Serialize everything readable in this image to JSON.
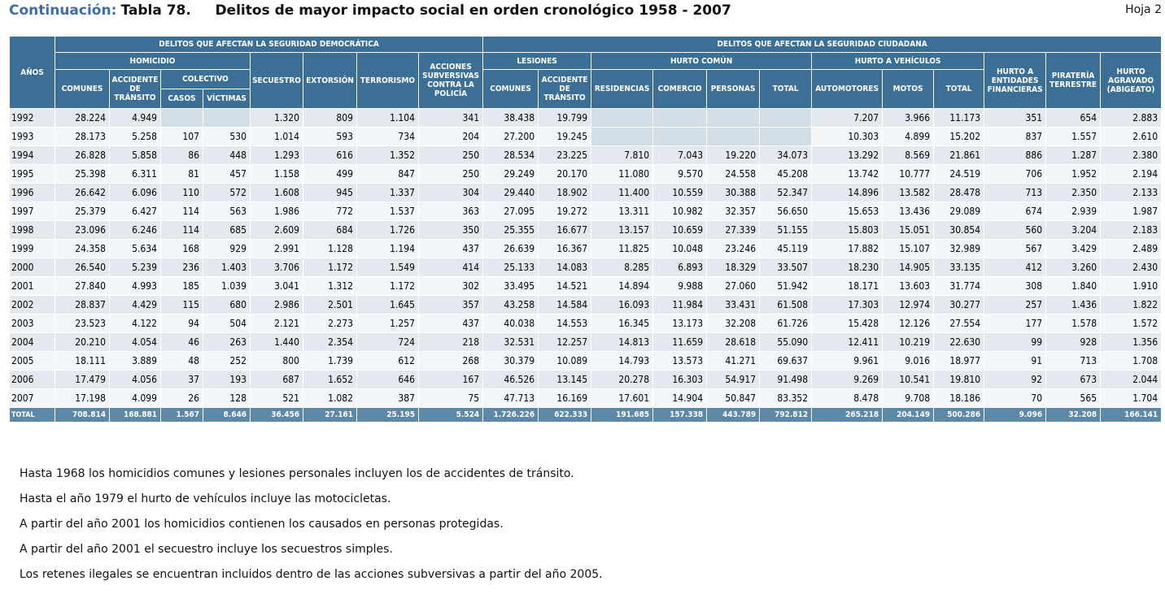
{
  "header": {
    "continuation": "Continuación:",
    "title": "Tabla 78.     Delitos de mayor impacto social en orden cronológico 1958 - 2007",
    "sheet": "Hoja 2"
  },
  "table": {
    "group_headers": {
      "democratica": "DELITOS QUE AFECTAN LA SEGURIDAD DEMOCRÁTICA",
      "ciudadana": "DELITOS QUE AFECTAN LA SEGURIDAD CIUDADANA"
    },
    "sub_headers": {
      "anos": "AÑOS",
      "homicidio": "HOMICIDIO",
      "comunes": "COMUNES",
      "accidente_transito": "ACCIDENTE DE TRÁNSITO",
      "colectivo": "COLECTIVO",
      "casos": "CASOS",
      "victimas": "VÍCTIMAS",
      "secuestro": "SECUESTRO",
      "extorsion": "EXTORSIÓN",
      "terrorismo": "TERRORISMO",
      "acciones": "ACCIONES SUBVERSIVAS CONTRA LA POLICÍA",
      "lesiones": "LESIONES",
      "les_comunes": "COMUNES",
      "les_accidente": "ACCIDENTE DE TRÁNSITO",
      "hurto_comun": "HURTO COMÚN",
      "residencias": "RESIDENCIAS",
      "comercio": "COMERCIO",
      "personas": "PERSONAS",
      "hc_total": "TOTAL",
      "hurto_vehiculos": "HURTO A VEHÍCULOS",
      "automotores": "AUTOMOTORES",
      "motos": "MOTOS",
      "hv_total": "TOTAL",
      "hurto_entidades": "HURTO A ENTIDADES FINANCIERAS",
      "pirateria": "PIRATERÍA TERRESTRE",
      "hurto_agravado": "HURTO AGRAVADO (ABIGEATO)"
    },
    "rows": [
      [
        "1992",
        "28.224",
        "4.949",
        "",
        "",
        "1.320",
        "809",
        "1.104",
        "341",
        "38.438",
        "19.799",
        "",
        "",
        "",
        "",
        "7.207",
        "3.966",
        "11.173",
        "351",
        "654",
        "2.883"
      ],
      [
        "1993",
        "28.173",
        "5.258",
        "107",
        "530",
        "1.014",
        "593",
        "734",
        "204",
        "27.200",
        "19.245",
        "",
        "",
        "",
        "",
        "10.303",
        "4.899",
        "15.202",
        "837",
        "1.557",
        "2.610"
      ],
      [
        "1994",
        "26.828",
        "5.858",
        "86",
        "448",
        "1.293",
        "616",
        "1.352",
        "250",
        "28.534",
        "23.225",
        "7.810",
        "7.043",
        "19.220",
        "34.073",
        "13.292",
        "8.569",
        "21.861",
        "886",
        "1.287",
        "2.380"
      ],
      [
        "1995",
        "25.398",
        "6.311",
        "81",
        "457",
        "1.158",
        "499",
        "847",
        "250",
        "29.249",
        "20.170",
        "11.080",
        "9.570",
        "24.558",
        "45.208",
        "13.742",
        "10.777",
        "24.519",
        "706",
        "1.952",
        "2.194"
      ],
      [
        "1996",
        "26.642",
        "6.096",
        "110",
        "572",
        "1.608",
        "945",
        "1.337",
        "304",
        "29.440",
        "18.902",
        "11.400",
        "10.559",
        "30.388",
        "52.347",
        "14.896",
        "13.582",
        "28.478",
        "713",
        "2.350",
        "2.133"
      ],
      [
        "1997",
        "25.379",
        "6.427",
        "114",
        "563",
        "1.986",
        "772",
        "1.537",
        "363",
        "27.095",
        "19.272",
        "13.311",
        "10.982",
        "32.357",
        "56.650",
        "15.653",
        "13.436",
        "29.089",
        "674",
        "2.939",
        "1.987"
      ],
      [
        "1998",
        "23.096",
        "6.246",
        "114",
        "685",
        "2.609",
        "684",
        "1.726",
        "350",
        "25.355",
        "16.677",
        "13.157",
        "10.659",
        "27.339",
        "51.155",
        "15.803",
        "15.051",
        "30.854",
        "560",
        "3.204",
        "2.183"
      ],
      [
        "1999",
        "24.358",
        "5.634",
        "168",
        "929",
        "2.991",
        "1.128",
        "1.194",
        "437",
        "26.639",
        "16.367",
        "11.825",
        "10.048",
        "23.246",
        "45.119",
        "17.882",
        "15.107",
        "32.989",
        "567",
        "3.429",
        "2.489"
      ],
      [
        "2000",
        "26.540",
        "5.239",
        "236",
        "1.403",
        "3.706",
        "1.172",
        "1.549",
        "414",
        "25.133",
        "14.083",
        "8.285",
        "6.893",
        "18.329",
        "33.507",
        "18.230",
        "14.905",
        "33.135",
        "412",
        "3.260",
        "2.430"
      ],
      [
        "2001",
        "27.840",
        "4.993",
        "185",
        "1.039",
        "3.041",
        "1.312",
        "1.172",
        "302",
        "33.495",
        "14.521",
        "14.894",
        "9.988",
        "27.060",
        "51.942",
        "18.171",
        "13.603",
        "31.774",
        "308",
        "1.840",
        "1.910"
      ],
      [
        "2002",
        "28.837",
        "4.429",
        "115",
        "680",
        "2.986",
        "2.501",
        "1.645",
        "357",
        "43.258",
        "14.584",
        "16.093",
        "11.984",
        "33.431",
        "61.508",
        "17.303",
        "12.974",
        "30.277",
        "257",
        "1.436",
        "1.822"
      ],
      [
        "2003",
        "23.523",
        "4.122",
        "94",
        "504",
        "2.121",
        "2.273",
        "1.257",
        "437",
        "40.038",
        "14.553",
        "16.345",
        "13.173",
        "32.208",
        "61.726",
        "15.428",
        "12.126",
        "27.554",
        "177",
        "1.578",
        "1.572"
      ],
      [
        "2004",
        "20.210",
        "4.054",
        "46",
        "263",
        "1.440",
        "2.354",
        "724",
        "218",
        "32.531",
        "12.257",
        "14.813",
        "11.659",
        "28.618",
        "55.090",
        "12.411",
        "10.219",
        "22.630",
        "99",
        "928",
        "1.356"
      ],
      [
        "2005",
        "18.111",
        "3.889",
        "48",
        "252",
        "800",
        "1.739",
        "612",
        "268",
        "30.379",
        "10.089",
        "14.793",
        "13.573",
        "41.271",
        "69.637",
        "9.961",
        "9.016",
        "18.977",
        "91",
        "713",
        "1.708"
      ],
      [
        "2006",
        "17.479",
        "4.056",
        "37",
        "193",
        "687",
        "1.652",
        "646",
        "167",
        "46.526",
        "13.145",
        "20.278",
        "16.303",
        "54.917",
        "91.498",
        "9.269",
        "10.541",
        "19.810",
        "92",
        "673",
        "2.044"
      ],
      [
        "2007",
        "17.198",
        "4.099",
        "26",
        "128",
        "521",
        "1.082",
        "387",
        "75",
        "47.713",
        "16.169",
        "17.601",
        "14.904",
        "50.847",
        "83.352",
        "8.478",
        "9.708",
        "18.186",
        "70",
        "565",
        "1.704"
      ]
    ],
    "total_row": [
      "TOTAL",
      "708.814",
      "168.881",
      "1.567",
      "8.646",
      "36.456",
      "27.161",
      "25.195",
      "5.524",
      "1.726.226",
      "622.333",
      "191.685",
      "157.338",
      "443.789",
      "792.812",
      "265.218",
      "204.149",
      "500.286",
      "9.096",
      "32.208",
      "166.141"
    ]
  },
  "notes": [
    "Hasta 1968 los homicidios comunes y lesiones personales incluyen los de accidentes de tránsito.",
    "Hasta el año 1979 el hurto de vehículos incluye las motocicletas.",
    "A partir del año 2001 los homicidios contienen los causados en personas protegidas.",
    "A partir del año 2001 el secuestro incluye los secuestros simples.",
    "Los retenes ilegales se encuentran incluidos dentro de las acciones subversivas a partir del año 2005."
  ]
}
